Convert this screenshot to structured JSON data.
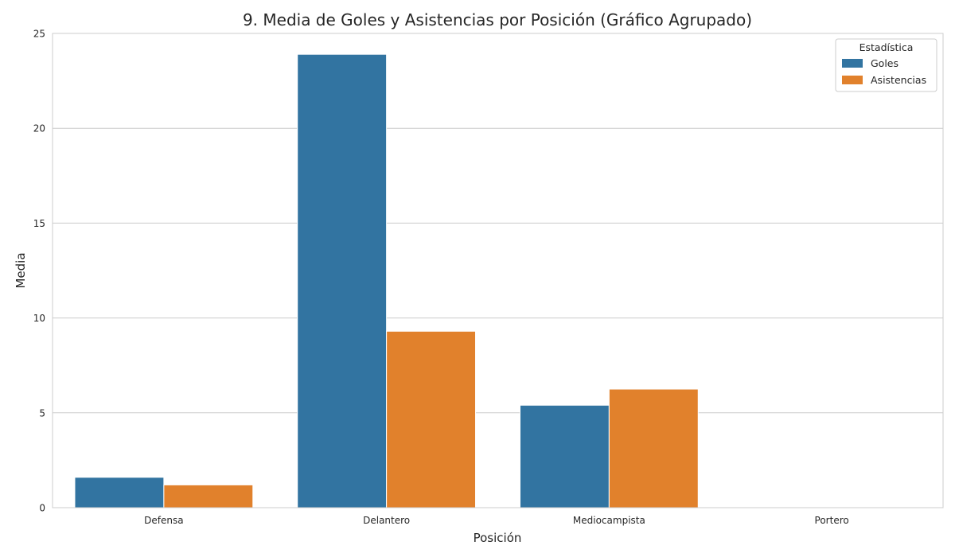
{
  "chart_data": {
    "type": "bar",
    "title": "9. Media de Goles y Asistencias por Posición (Gráfico Agrupado)",
    "xlabel": "Posición",
    "ylabel": "Media",
    "categories": [
      "Defensa",
      "Delantero",
      "Mediocampista",
      "Portero"
    ],
    "series": [
      {
        "name": "Goles",
        "color": "#3274a1",
        "values": [
          1.6,
          23.9,
          5.4,
          0.0
        ]
      },
      {
        "name": "Asistencias",
        "color": "#e1812c",
        "values": [
          1.2,
          9.3,
          6.25,
          0.0
        ]
      }
    ],
    "ylim": [
      0,
      25
    ],
    "yticks": [
      0,
      5,
      10,
      15,
      20,
      25
    ],
    "grid": true,
    "legend": {
      "title": "Estadística",
      "position": "top-right"
    }
  }
}
